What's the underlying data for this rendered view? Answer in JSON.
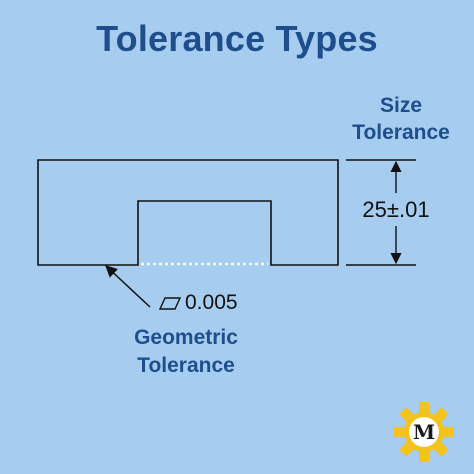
{
  "title": "Tolerance Types",
  "size_tolerance": {
    "line1": "Size",
    "line2": "Tolerance",
    "dimension": "25±.01"
  },
  "geometric_tolerance": {
    "symbol": "parallelogram-icon",
    "value": "0.005",
    "line1": "Geometric",
    "line2": "Tolerance"
  },
  "logo": {
    "letter": "M",
    "gear_color": "#f3c21b"
  },
  "colors": {
    "background": "#a6cdf0",
    "heading": "#1f4e8c",
    "line": "#111111"
  }
}
